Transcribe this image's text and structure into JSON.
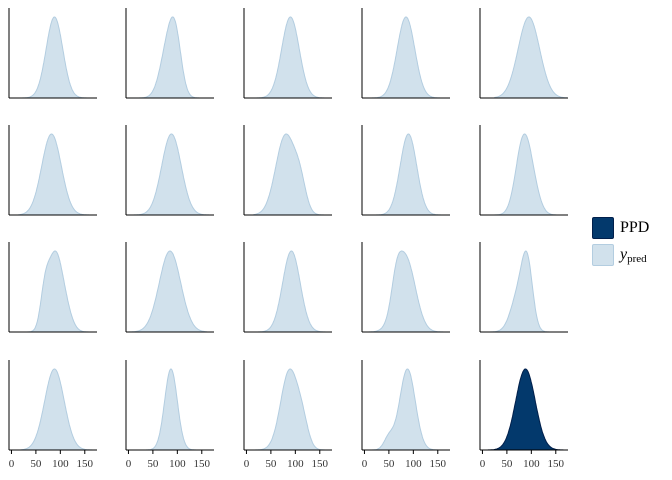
{
  "chart_data": {
    "type": "area",
    "layout": {
      "rows": 4,
      "cols": 5
    },
    "xlim": [
      -5,
      175
    ],
    "x_ticks": [
      "0",
      "50",
      "100",
      "150"
    ],
    "x_tick_values": [
      0,
      50,
      100,
      150
    ],
    "series": [
      {
        "name": "PPD",
        "fill": "#03396c",
        "outline": "#011f4b",
        "panels": [
          19
        ]
      },
      {
        "name": "y_pred",
        "fill": "#d1e1ec",
        "outline": "#b3cde0",
        "panels": [
          0,
          1,
          2,
          3,
          4,
          5,
          6,
          7,
          8,
          9,
          10,
          11,
          12,
          13,
          14,
          15,
          16,
          17,
          18
        ]
      }
    ],
    "panels": [
      {
        "peaks": [
          [
            88,
            17,
            1
          ]
        ],
        "range": [
          18,
          158
        ]
      },
      {
        "peaks": [
          [
            82,
            16,
            0.95
          ],
          [
            97,
            12,
            0.7
          ]
        ],
        "range": [
          22,
          158
        ]
      },
      {
        "peaks": [
          [
            90,
            18,
            1
          ]
        ],
        "range": [
          15,
          168
        ]
      },
      {
        "peaks": [
          [
            85,
            18,
            1
          ]
        ],
        "range": [
          15,
          165
        ]
      },
      {
        "peaks": [
          [
            95,
            22,
            1
          ]
        ],
        "range": [
          25,
          172
        ]
      },
      {
        "peaks": [
          [
            82,
            20,
            1
          ]
        ],
        "range": [
          15,
          160
        ]
      },
      {
        "peaks": [
          [
            88,
            20,
            1
          ]
        ],
        "range": [
          10,
          165
        ]
      },
      {
        "peaks": [
          [
            80,
            20,
            1
          ],
          [
            110,
            12,
            0.3
          ]
        ],
        "range": [
          15,
          165
        ]
      },
      {
        "peaks": [
          [
            90,
            17,
            1
          ]
        ],
        "range": [
          15,
          158
        ]
      },
      {
        "peaks": [
          [
            82,
            15,
            1
          ],
          [
            100,
            15,
            0.45
          ]
        ],
        "range": [
          20,
          150
        ]
      },
      {
        "peaks": [
          [
            88,
            14,
            1
          ],
          [
            68,
            9,
            0.45
          ],
          [
            108,
            14,
            0.35
          ]
        ],
        "range": [
          20,
          165
        ]
      },
      {
        "peaks": [
          [
            85,
            22,
            1
          ]
        ],
        "range": [
          2,
          160
        ]
      },
      {
        "peaks": [
          [
            92,
            18,
            1
          ]
        ],
        "range": [
          25,
          165
        ]
      },
      {
        "peaks": [
          [
            84,
            20,
            1
          ],
          [
            65,
            10,
            0.3
          ]
        ],
        "range": [
          10,
          160
        ]
      },
      {
        "peaks": [
          [
            92,
            11,
            1
          ],
          [
            75,
            16,
            0.7
          ]
        ],
        "range": [
          5,
          165
        ]
      },
      {
        "peaks": [
          [
            88,
            20,
            1
          ]
        ],
        "range": [
          20,
          170
        ]
      },
      {
        "peaks": [
          [
            87,
            13,
            1
          ]
        ],
        "range": [
          10,
          165
        ]
      },
      {
        "peaks": [
          [
            88,
            18,
            1
          ],
          [
            115,
            12,
            0.25
          ]
        ],
        "range": [
          10,
          170
        ]
      },
      {
        "peaks": [
          [
            88,
            16,
            1
          ],
          [
            50,
            10,
            0.15
          ]
        ],
        "range": [
          10,
          168
        ]
      },
      {
        "peaks": [
          [
            88,
            20,
            1
          ]
        ],
        "range": [
          -5,
          175
        ]
      }
    ]
  }
}
